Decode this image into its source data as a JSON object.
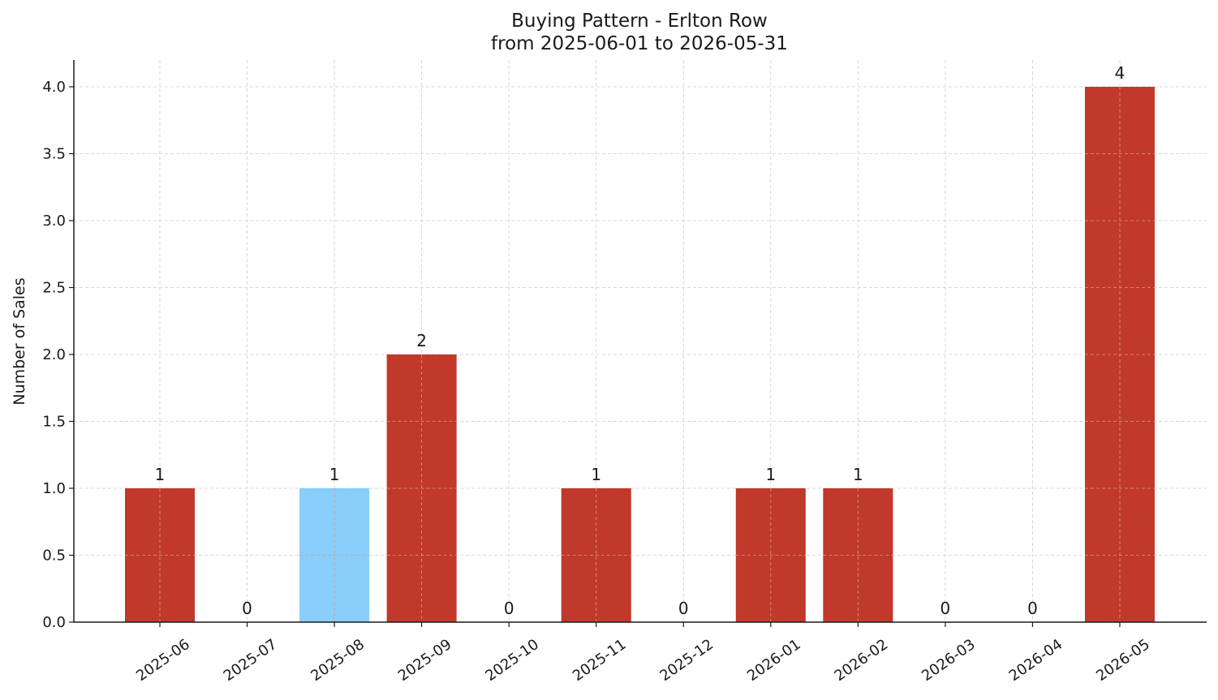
{
  "chart_data": {
    "type": "bar",
    "title": "Buying Pattern - Erlton Row",
    "subtitle": "from 2025-06-01 to 2026-05-31",
    "xlabel": "",
    "ylabel": "Number of Sales",
    "categories": [
      "2025-06",
      "2025-07",
      "2025-08",
      "2025-09",
      "2025-10",
      "2025-11",
      "2025-12",
      "2026-01",
      "2026-02",
      "2026-03",
      "2026-04",
      "2026-05"
    ],
    "values": [
      1,
      0,
      1,
      2,
      0,
      1,
      0,
      1,
      1,
      0,
      0,
      4
    ],
    "bar_colors": [
      "#c0392b",
      "#c0392b",
      "#87cefa",
      "#c0392b",
      "#c0392b",
      "#c0392b",
      "#c0392b",
      "#c0392b",
      "#c0392b",
      "#c0392b",
      "#c0392b",
      "#c0392b"
    ],
    "ylim": [
      0,
      4.2
    ],
    "yticks": [
      "0.0",
      "0.5",
      "1.0",
      "1.5",
      "2.0",
      "2.5",
      "3.0",
      "3.5",
      "4.0"
    ],
    "grid": true,
    "legend": false
  }
}
